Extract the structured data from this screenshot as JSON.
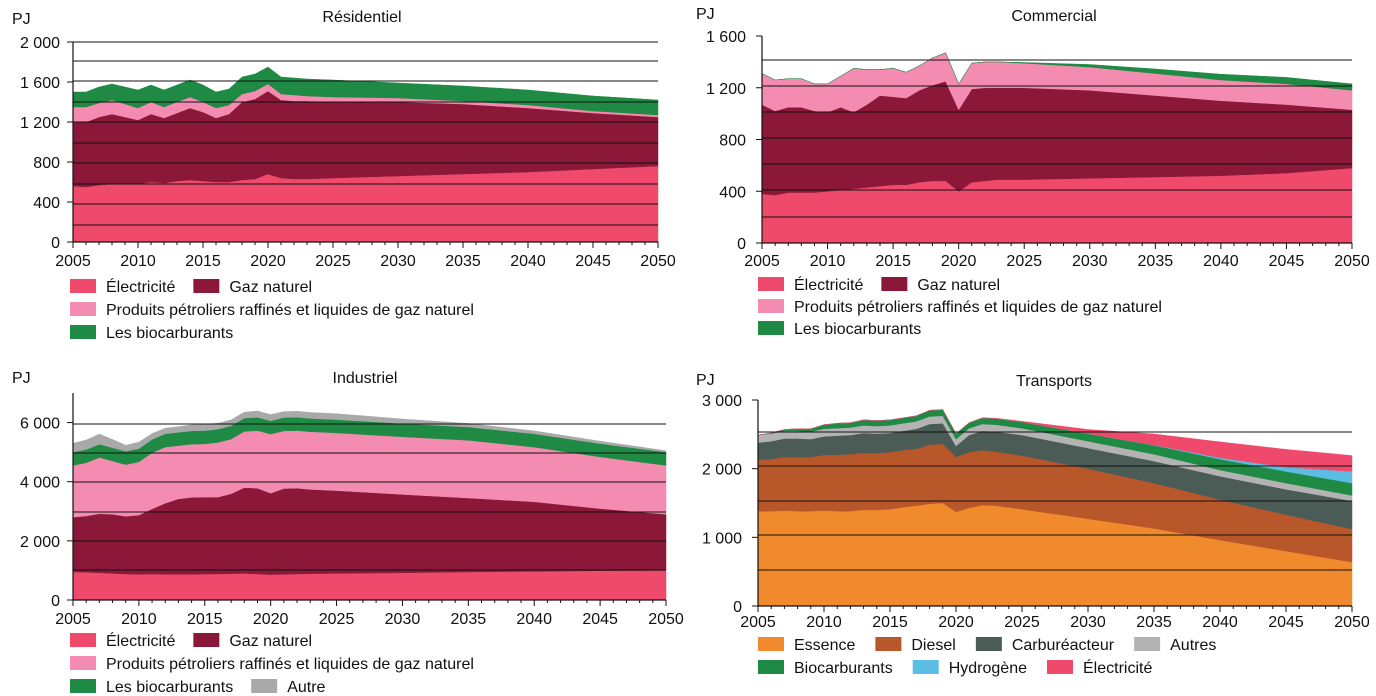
{
  "colors": {
    "electricite": "#ef4a6b",
    "gaz": "#8b1839",
    "petrole": "#f38cb0",
    "bio": "#1f8a44",
    "autre": "#a9a9a9",
    "essence": "#f08a2c",
    "diesel": "#b8582a",
    "carbureacteur": "#4b5b56",
    "autres_t": "#b3b3b3",
    "hydrogene": "#5bbde4"
  },
  "chart_data": [
    {
      "id": "residentiel",
      "type": "area",
      "title": "Résidentiel",
      "ylabel": "PJ",
      "ylim": [
        0,
        2000
      ],
      "yticks": [
        0,
        400,
        800,
        1200,
        1600,
        2000
      ],
      "ytick_labels": [
        "0",
        "400",
        "800",
        "1 200",
        "1 600",
        "2 000"
      ],
      "xticks": [
        2005,
        2010,
        2015,
        2020,
        2025,
        2030,
        2035,
        2040,
        2045,
        2050
      ],
      "x": [
        2005,
        2006,
        2007,
        2008,
        2009,
        2010,
        2011,
        2012,
        2013,
        2014,
        2015,
        2016,
        2017,
        2018,
        2019,
        2020,
        2021,
        2022,
        2023,
        2025,
        2030,
        2035,
        2040,
        2045,
        2050
      ],
      "series": [
        {
          "name": "Électricité",
          "color_key": "electricite",
          "values": [
            560,
            550,
            570,
            580,
            580,
            580,
            600,
            590,
            610,
            620,
            610,
            600,
            600,
            620,
            630,
            680,
            640,
            630,
            630,
            640,
            660,
            680,
            700,
            730,
            760
          ]
        },
        {
          "name": "Gaz naturel",
          "color_key": "gaz",
          "values": [
            640,
            650,
            680,
            700,
            670,
            640,
            680,
            650,
            680,
            720,
            690,
            640,
            680,
            780,
            800,
            830,
            780,
            780,
            780,
            760,
            740,
            700,
            640,
            560,
            490
          ]
        },
        {
          "name": "Produits pétroliers raffinés et liquides de gaz naturel",
          "color_key": "petrole",
          "values": [
            150,
            150,
            140,
            140,
            130,
            120,
            120,
            110,
            110,
            110,
            100,
            100,
            90,
            80,
            80,
            70,
            60,
            60,
            50,
            50,
            40,
            30,
            30,
            20,
            20
          ]
        },
        {
          "name": "Les biocarburants",
          "color_key": "bio",
          "values": [
            150,
            150,
            160,
            160,
            170,
            180,
            170,
            170,
            170,
            170,
            170,
            160,
            160,
            170,
            170,
            170,
            170,
            170,
            170,
            170,
            150,
            150,
            150,
            150,
            150
          ]
        }
      ]
    },
    {
      "id": "commercial",
      "type": "area",
      "title": "Commercial",
      "ylabel": "PJ",
      "ylim": [
        0,
        1600
      ],
      "yticks": [
        0,
        400,
        800,
        1200,
        1600
      ],
      "ytick_labels": [
        "0",
        "400",
        "800",
        "1 200",
        "1 600"
      ],
      "xticks": [
        2005,
        2010,
        2015,
        2020,
        2025,
        2030,
        2035,
        2040,
        2045,
        2050
      ],
      "x": [
        2005,
        2006,
        2007,
        2008,
        2009,
        2010,
        2011,
        2012,
        2013,
        2014,
        2015,
        2016,
        2017,
        2018,
        2019,
        2020,
        2021,
        2022,
        2023,
        2025,
        2030,
        2035,
        2040,
        2045,
        2050
      ],
      "series": [
        {
          "name": "Électricité",
          "color_key": "electricite",
          "values": [
            380,
            370,
            390,
            390,
            390,
            400,
            410,
            420,
            430,
            440,
            450,
            450,
            470,
            480,
            480,
            400,
            470,
            480,
            490,
            490,
            500,
            510,
            520,
            540,
            580
          ]
        },
        {
          "name": "Gaz naturel",
          "color_key": "gaz",
          "values": [
            690,
            650,
            660,
            660,
            630,
            610,
            640,
            590,
            640,
            700,
            680,
            670,
            710,
            740,
            770,
            630,
            720,
            720,
            710,
            710,
            680,
            630,
            580,
            530,
            450
          ]
        },
        {
          "name": "Produits pétroliers raffinés et liquides de gaz naturel",
          "color_key": "petrole",
          "values": [
            240,
            240,
            220,
            220,
            210,
            220,
            240,
            340,
            270,
            200,
            220,
            200,
            190,
            210,
            220,
            200,
            200,
            200,
            200,
            190,
            180,
            170,
            160,
            160,
            150
          ]
        },
        {
          "name": "Les biocarburants",
          "color_key": "bio",
          "values": [
            0,
            0,
            0,
            0,
            0,
            0,
            0,
            0,
            0,
            0,
            0,
            0,
            0,
            0,
            0,
            0,
            0,
            0,
            0,
            5,
            20,
            35,
            45,
            50,
            50
          ]
        }
      ]
    },
    {
      "id": "industriel",
      "type": "area",
      "title": "Industriel",
      "ylabel": "PJ",
      "ylim": [
        0,
        7000
      ],
      "yticks": [
        0,
        2000,
        4000,
        6000
      ],
      "ytick_labels": [
        "0",
        "2 000",
        "4 000",
        "6 000"
      ],
      "xticks": [
        2005,
        2010,
        2015,
        2020,
        2025,
        2030,
        2035,
        2040,
        2045,
        2050
      ],
      "x": [
        2005,
        2006,
        2007,
        2008,
        2009,
        2010,
        2011,
        2012,
        2013,
        2014,
        2015,
        2016,
        2017,
        2018,
        2019,
        2020,
        2021,
        2022,
        2023,
        2025,
        2030,
        2035,
        2040,
        2045,
        2050
      ],
      "series": [
        {
          "name": "Électricité",
          "color_key": "electricite",
          "values": [
            950,
            940,
            920,
            900,
            880,
            870,
            880,
            870,
            870,
            870,
            880,
            880,
            890,
            900,
            880,
            860,
            870,
            880,
            890,
            900,
            920,
            950,
            970,
            990,
            1000
          ]
        },
        {
          "name": "Gaz naturel",
          "color_key": "gaz",
          "values": [
            1850,
            1900,
            2000,
            2000,
            1950,
            2000,
            2200,
            2400,
            2550,
            2600,
            2600,
            2600,
            2700,
            2900,
            2900,
            2750,
            2900,
            2900,
            2850,
            2800,
            2650,
            2500,
            2350,
            2100,
            1900
          ]
        },
        {
          "name": "Produits pétroliers raffinés et liquides de gaz naturel",
          "color_key": "petrole",
          "values": [
            1750,
            1800,
            1900,
            1800,
            1750,
            1800,
            1900,
            1900,
            1800,
            1800,
            1800,
            1850,
            1850,
            1900,
            1950,
            2000,
            1950,
            1950,
            1950,
            1950,
            1950,
            1950,
            1850,
            1750,
            1650
          ]
        },
        {
          "name": "Les biocarburants",
          "color_key": "bio",
          "values": [
            450,
            450,
            450,
            450,
            450,
            450,
            450,
            450,
            450,
            450,
            450,
            450,
            450,
            450,
            450,
            450,
            450,
            450,
            450,
            450,
            450,
            450,
            450,
            450,
            450
          ]
        },
        {
          "name": "Autre",
          "color_key": "autre",
          "values": [
            300,
            320,
            340,
            280,
            200,
            220,
            200,
            190,
            190,
            200,
            210,
            200,
            200,
            200,
            210,
            210,
            200,
            200,
            200,
            200,
            150,
            120,
            100,
            80,
            50
          ]
        }
      ]
    },
    {
      "id": "transports",
      "type": "area",
      "title": "Transports",
      "ylabel": "PJ",
      "ylim": [
        0,
        3000
      ],
      "yticks": [
        0,
        1000,
        2000,
        3000
      ],
      "ytick_labels": [
        "0",
        "1 000",
        "2 000",
        "3 000"
      ],
      "xticks": [
        2005,
        2010,
        2015,
        2020,
        2025,
        2030,
        2035,
        2040,
        2045,
        2050
      ],
      "x": [
        2005,
        2006,
        2007,
        2008,
        2009,
        2010,
        2011,
        2012,
        2013,
        2014,
        2015,
        2016,
        2017,
        2018,
        2019,
        2020,
        2021,
        2022,
        2023,
        2025,
        2030,
        2035,
        2040,
        2045,
        2050
      ],
      "series": [
        {
          "name": "Essence",
          "color_key": "essence",
          "values": [
            1380,
            1380,
            1390,
            1380,
            1380,
            1390,
            1380,
            1380,
            1400,
            1400,
            1410,
            1440,
            1460,
            1490,
            1500,
            1370,
            1430,
            1470,
            1460,
            1410,
            1270,
            1130,
            960,
            800,
            640
          ]
        },
        {
          "name": "Diesel",
          "color_key": "diesel",
          "values": [
            750,
            760,
            780,
            790,
            790,
            810,
            820,
            830,
            830,
            830,
            830,
            830,
            830,
            860,
            860,
            800,
            810,
            800,
            790,
            780,
            730,
            660,
            590,
            530,
            480
          ]
        },
        {
          "name": "Carburéacteur",
          "color_key": "carbureacteur",
          "values": [
            250,
            260,
            270,
            270,
            260,
            270,
            280,
            280,
            290,
            280,
            280,
            280,
            290,
            300,
            300,
            160,
            250,
            280,
            290,
            300,
            300,
            320,
            340,
            370,
            410
          ]
        },
        {
          "name": "Autres",
          "color_key": "autres_t",
          "values": [
            110,
            110,
            110,
            110,
            110,
            110,
            110,
            110,
            110,
            110,
            110,
            110,
            110,
            110,
            110,
            100,
            100,
            100,
            100,
            100,
            100,
            100,
            90,
            90,
            80
          ]
        },
        {
          "name": "Biocarburants",
          "color_key": "bio",
          "values": [
            0,
            10,
            20,
            30,
            40,
            60,
            70,
            70,
            80,
            80,
            80,
            80,
            80,
            90,
            90,
            80,
            80,
            90,
            90,
            90,
            110,
            130,
            160,
            170,
            180
          ]
        },
        {
          "name": "Hydrogène",
          "color_key": "hydrogene",
          "values": [
            0,
            0,
            0,
            0,
            0,
            0,
            0,
            0,
            0,
            0,
            0,
            0,
            0,
            0,
            0,
            0,
            0,
            0,
            0,
            0,
            0,
            5,
            20,
            60,
            170
          ]
        },
        {
          "name": "Électricité",
          "color_key": "electricite",
          "values": [
            0,
            0,
            0,
            0,
            0,
            0,
            0,
            0,
            0,
            0,
            0,
            0,
            0,
            0,
            0,
            0,
            0,
            0,
            5,
            10,
            60,
            160,
            230,
            260,
            230
          ]
        }
      ]
    }
  ],
  "legends": {
    "residentiel": [
      [
        {
          "label": "Électricité",
          "color_key": "electricite"
        },
        {
          "label": "Gaz naturel",
          "color_key": "gaz"
        }
      ],
      [
        {
          "label": "Produits pétroliers raffinés et liquides de gaz naturel",
          "color_key": "petrole"
        }
      ],
      [
        {
          "label": "Les biocarburants",
          "color_key": "bio"
        }
      ]
    ],
    "commercial": [
      [
        {
          "label": "Électricité",
          "color_key": "electricite"
        },
        {
          "label": "Gaz naturel",
          "color_key": "gaz"
        }
      ],
      [
        {
          "label": "Produits pétroliers raffinés et liquides de gaz naturel",
          "color_key": "petrole"
        }
      ],
      [
        {
          "label": "Les biocarburants",
          "color_key": "bio"
        }
      ]
    ],
    "industriel": [
      [
        {
          "label": "Électricité",
          "color_key": "electricite"
        },
        {
          "label": "Gaz naturel",
          "color_key": "gaz"
        }
      ],
      [
        {
          "label": "Produits pétroliers raffinés et liquides de gaz naturel",
          "color_key": "petrole"
        }
      ],
      [
        {
          "label": "Les biocarburants",
          "color_key": "bio"
        },
        {
          "label": "Autre",
          "color_key": "autre"
        }
      ]
    ],
    "transports": [
      [
        {
          "label": "Essence",
          "color_key": "essence"
        },
        {
          "label": "Diesel",
          "color_key": "diesel"
        },
        {
          "label": "Carburéacteur",
          "color_key": "carbureacteur"
        },
        {
          "label": "Autres",
          "color_key": "autres_t"
        }
      ],
      [
        {
          "label": "Biocarburants",
          "color_key": "bio"
        },
        {
          "label": "Hydrogène",
          "color_key": "hydrogene"
        },
        {
          "label": "Électricité",
          "color_key": "electricite"
        }
      ]
    ]
  }
}
